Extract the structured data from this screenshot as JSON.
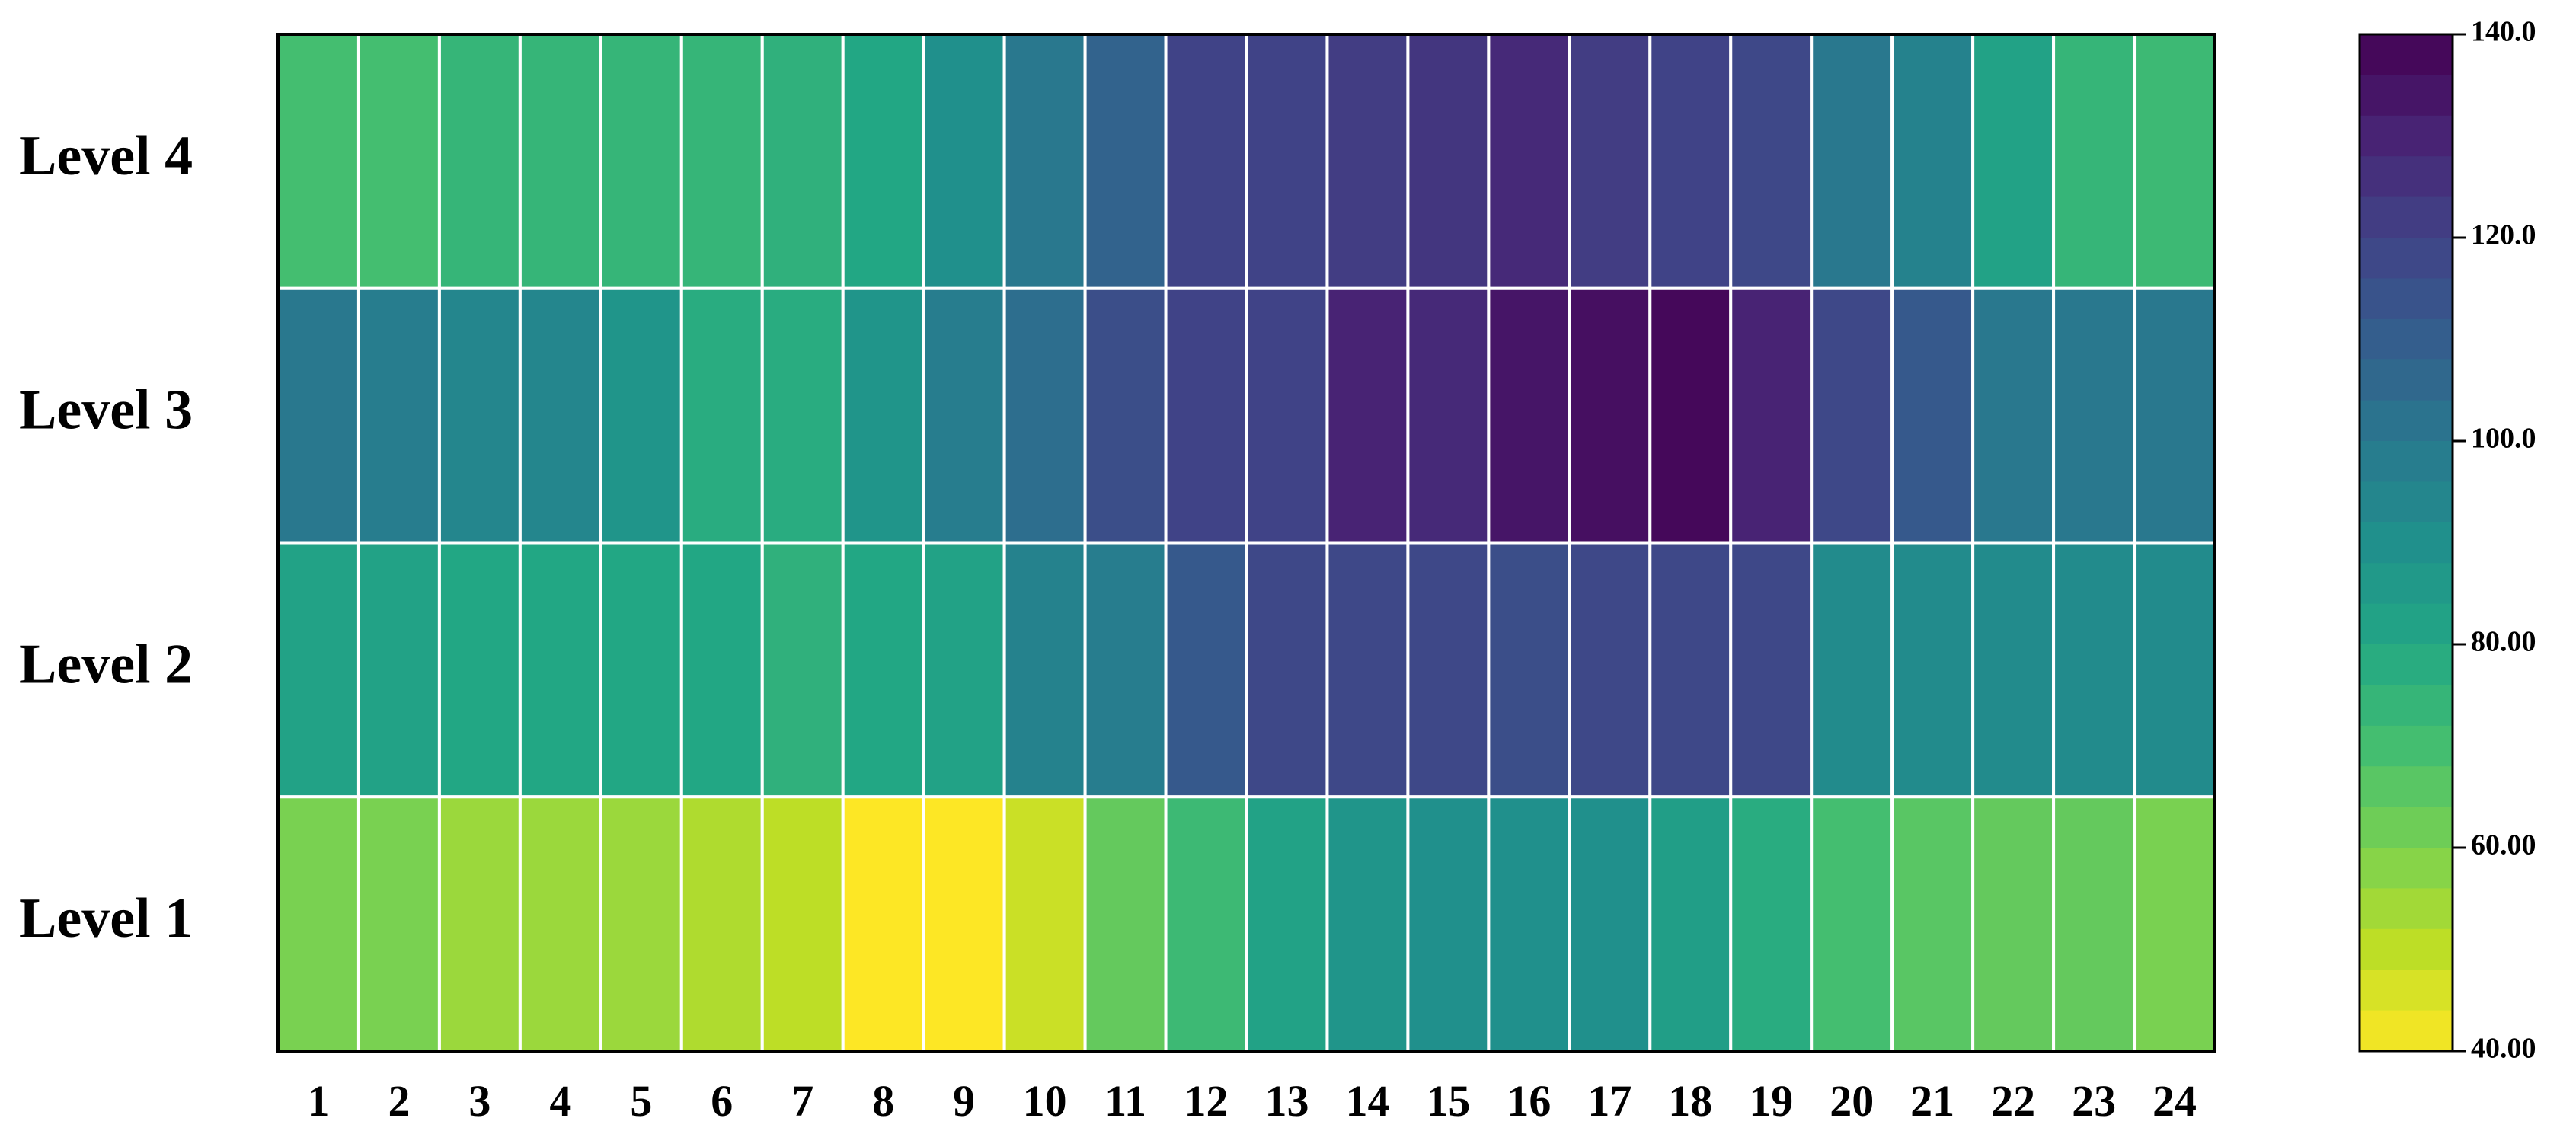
{
  "chart_data": {
    "type": "heatmap",
    "title": "",
    "xlabel": "",
    "ylabel": "",
    "x_categories": [
      "1",
      "2",
      "3",
      "4",
      "5",
      "6",
      "7",
      "8",
      "9",
      "10",
      "11",
      "12",
      "13",
      "14",
      "15",
      "16",
      "17",
      "18",
      "19",
      "20",
      "21",
      "22",
      "23",
      "24"
    ],
    "y_categories": [
      "Level 4",
      "Level 3",
      "Level 2",
      "Level 1"
    ],
    "values": [
      [
        70,
        70,
        74,
        74,
        74,
        74,
        76,
        80,
        90,
        100,
        108,
        120,
        120,
        122,
        124,
        128,
        122,
        120,
        118,
        100,
        96,
        82,
        74,
        72
      ],
      [
        100,
        98,
        94,
        94,
        88,
        78,
        78,
        88,
        98,
        104,
        116,
        120,
        120,
        130,
        128,
        134,
        136,
        138,
        130,
        118,
        112,
        100,
        100,
        100
      ],
      [
        82,
        82,
        80,
        80,
        80,
        80,
        76,
        80,
        82,
        96,
        98,
        112,
        118,
        118,
        118,
        116,
        118,
        118,
        118,
        92,
        92,
        92,
        92,
        92
      ],
      [
        60,
        60,
        55,
        55,
        55,
        52,
        50,
        40,
        40,
        48,
        64,
        72,
        82,
        88,
        90,
        90,
        90,
        84,
        78,
        70,
        66,
        64,
        64,
        60
      ]
    ],
    "colorbar": {
      "min": 40,
      "max": 140,
      "levels": 25,
      "ticks": [
        {
          "value": 40,
          "label": "40.00"
        },
        {
          "value": 60,
          "label": "60.00"
        },
        {
          "value": 80,
          "label": "80.00"
        },
        {
          "value": 100,
          "label": "100.0"
        },
        {
          "value": 120,
          "label": "120.0"
        },
        {
          "value": 140,
          "label": "140.0"
        }
      ],
      "colormap": "viridis"
    },
    "grid": true,
    "legend": "right"
  }
}
